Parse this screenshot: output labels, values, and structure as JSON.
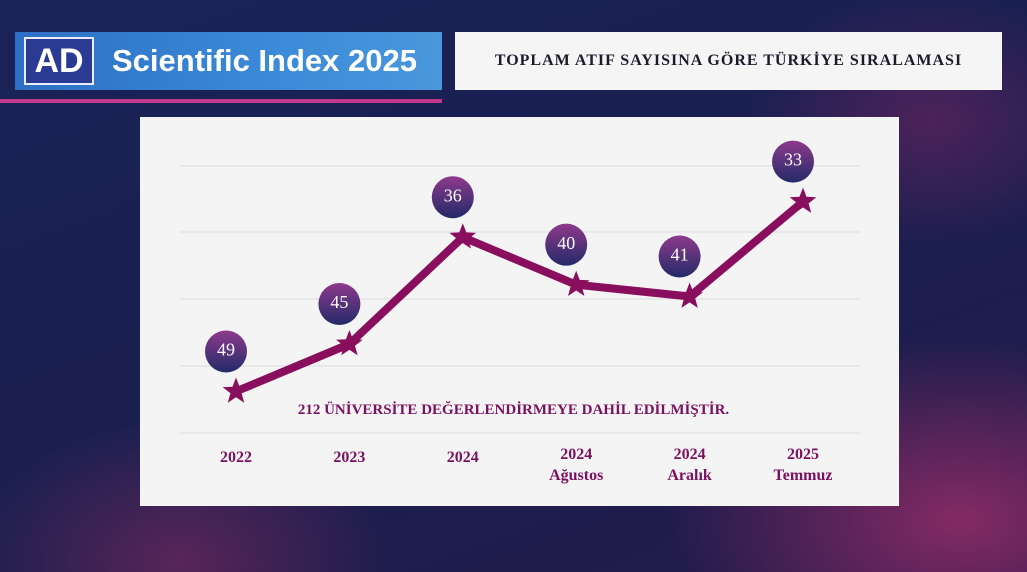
{
  "header": {
    "logo": "AD",
    "title": "Scientific Index 2025"
  },
  "chart_data": {
    "type": "line",
    "title": "TOPLAM ATIF SAYISINA GÖRE TÜRKİYE SIRALAMASI",
    "annotation": "212 ÜNİVERSİTE DEĞERLENDİRMEYE DAHİL EDİLMİŞTİR.",
    "categories": [
      "2022",
      "2023",
      "2024",
      "2024\nAğustos",
      "2024\nAralık",
      "2025\nTemmuz"
    ],
    "values": [
      49,
      45,
      36,
      40,
      41,
      33
    ],
    "color": "#8a0e5e",
    "ylim": [
      52.5,
      30
    ]
  }
}
